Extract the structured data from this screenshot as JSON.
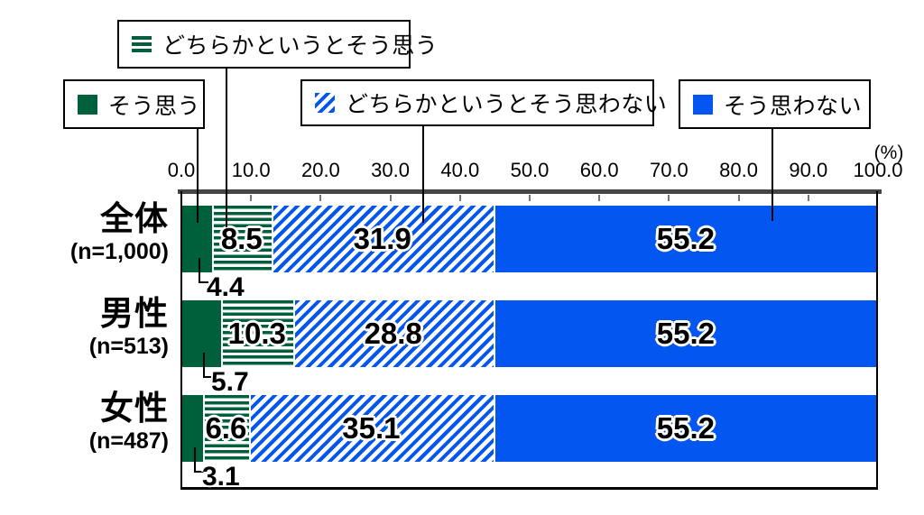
{
  "percent_label": "(%)",
  "colors": {
    "green": "#00603C",
    "blue": "#0356F0",
    "axis_line": "#454545",
    "plot_border": "#000000"
  },
  "legend": [
    {
      "label": "そう思う",
      "pattern": "solid-green"
    },
    {
      "label": "どちらかというとそう思う",
      "pattern": "hlines-green"
    },
    {
      "label": "どちらかというとそう思わない",
      "pattern": "diag-blue"
    },
    {
      "label": "そう思わない",
      "pattern": "solid-blue"
    }
  ],
  "chart_data": {
    "type": "bar",
    "stacked": true,
    "orientation": "horizontal",
    "title": "",
    "xlabel": "(%)",
    "xlim": [
      0,
      100
    ],
    "x_ticks": [
      "0.0",
      "10.0",
      "20.0",
      "30.0",
      "40.0",
      "50.0",
      "60.0",
      "70.0",
      "80.0",
      "90.0",
      "100.0"
    ],
    "legend_position": "top",
    "grid": false,
    "series_names": [
      "そう思う",
      "どちらかというとそう思う",
      "どちらかというとそう思わない",
      "そう思わない"
    ],
    "rows": [
      {
        "label": "全体",
        "n_label": "(n=1,000)",
        "values": [
          4.4,
          8.5,
          31.9,
          55.2
        ]
      },
      {
        "label": "男性",
        "n_label": "(n=513)",
        "values": [
          5.7,
          10.3,
          28.8,
          55.2
        ]
      },
      {
        "label": "女性",
        "n_label": "(n=487)",
        "values": [
          3.1,
          6.6,
          35.1,
          55.2
        ]
      }
    ]
  }
}
